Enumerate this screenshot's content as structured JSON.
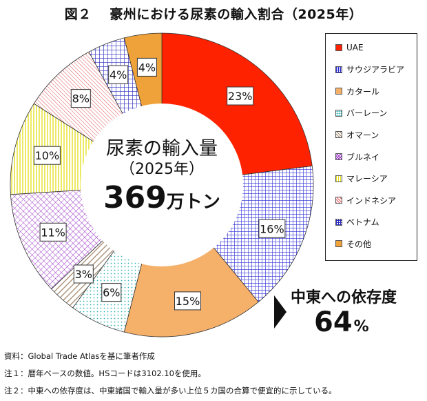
{
  "title": "図２　 豪州における尿素の輸入割合（2025年）",
  "center": {
    "line1": "尿素の輸入量",
    "line2": "（2025年）",
    "number": "369",
    "unit": "万トン"
  },
  "middle_east": {
    "label": "中東への依存度",
    "number": "64",
    "unit": "%"
  },
  "notes": [
    "資料：Global Trade Atlasを基に筆者作成",
    "注１：暦年ベースの数値。HSコードは3102.10を使用。",
    "注２：中東への依存度は、中東諸国で輸入量が多い上位５カ国の合算で便宜的に示している。"
  ],
  "chart_data": {
    "type": "pie",
    "title": "図２　 豪州における尿素の輸入割合（2025年）",
    "donut": true,
    "direction": "clockwise",
    "start": "12 o'clock",
    "legend_position": "right",
    "series": [
      {
        "name": "UAE",
        "value": 23,
        "label": "23%",
        "color": "#FF2200",
        "pattern": "solid"
      },
      {
        "name": "サウジアラビア",
        "value": 16,
        "label": "16%",
        "color": "#2B2BD6",
        "pattern": "grid"
      },
      {
        "name": "カタール",
        "value": 15,
        "label": "15%",
        "color": "#F5B06A",
        "pattern": "solid"
      },
      {
        "name": "バーレーン",
        "value": 6,
        "label": "6%",
        "color": "#2FB3B3",
        "pattern": "dots"
      },
      {
        "name": "オマーン",
        "value": 3,
        "label": "3%",
        "color": "#9E8266",
        "pattern": "diagonal"
      },
      {
        "name": "ブルネイ",
        "value": 11,
        "label": "11%",
        "color": "#9B38C7",
        "pattern": "crosshatch"
      },
      {
        "name": "マレーシア",
        "value": 10,
        "label": "10%",
        "color": "#E6E020",
        "pattern": "vertical"
      },
      {
        "name": "インドネシア",
        "value": 8,
        "label": "8%",
        "color": "#E05050",
        "pattern": "diagonal-dense"
      },
      {
        "name": "ベトナム",
        "value": 4,
        "label": "4%",
        "color": "#2B2BC0",
        "pattern": "grid-small"
      },
      {
        "name": "その他",
        "value": 4,
        "label": "4%",
        "color": "#F0A23A",
        "pattern": "solid"
      }
    ]
  }
}
